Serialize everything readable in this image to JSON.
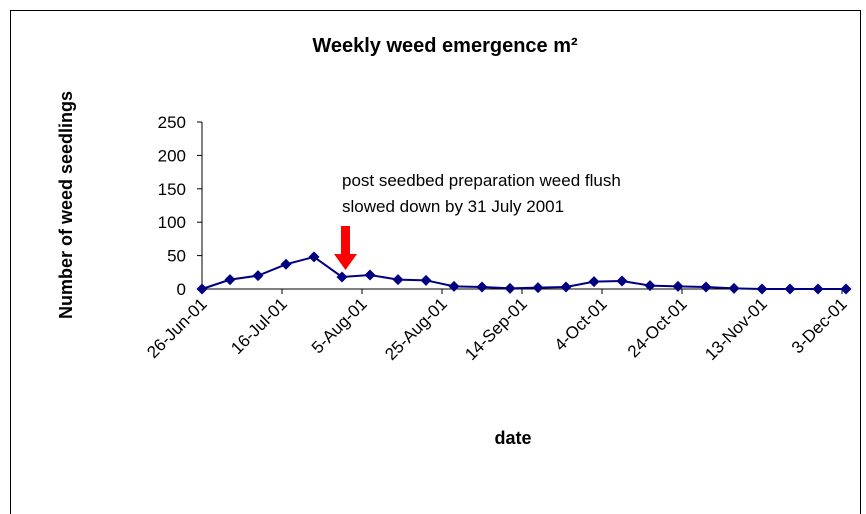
{
  "chart_data": {
    "type": "line",
    "title": "Weekly weed emergence m²",
    "x_label": "date",
    "y_label": "Number of weed seedlings",
    "annotation": [
      "post seedbed preparation weed flush",
      "slowed down by 31 July 2001"
    ],
    "x": [
      "26-Jun-01",
      "3-Jul-01",
      "10-Jul-01",
      "17-Jul-01",
      "24-Jul-01",
      "31-Jul-01",
      "7-Aug-01",
      "14-Aug-01",
      "21-Aug-01",
      "28-Aug-01",
      "4-Sep-01",
      "11-Sep-01",
      "18-Sep-01",
      "25-Sep-01",
      "2-Oct-01",
      "9-Oct-01",
      "16-Oct-01",
      "23-Oct-01",
      "30-Oct-01",
      "6-Nov-01",
      "13-Nov-01",
      "20-Nov-01",
      "27-Nov-01",
      "4-Dec-01"
    ],
    "series": [
      {
        "name": "weed seedlings",
        "color": "#000080",
        "values": [
          0,
          14,
          20,
          37,
          48,
          18,
          21,
          14,
          13,
          4,
          3,
          1,
          2,
          3,
          11,
          12,
          5,
          4,
          3,
          1,
          0,
          0,
          0,
          0
        ]
      }
    ],
    "xlim": [
      "26-Jun-01",
      "4-Dec-01"
    ],
    "xticks": [
      "26-Jun-01",
      "16-Jul-01",
      "5-Aug-01",
      "25-Aug-01",
      "14-Sep-01",
      "4-Oct-01",
      "24-Oct-01",
      "13-Nov-01",
      "3-Dec-01"
    ],
    "ylim": [
      0,
      250
    ],
    "yticks": [
      0,
      50,
      100,
      150,
      200,
      250
    ]
  }
}
